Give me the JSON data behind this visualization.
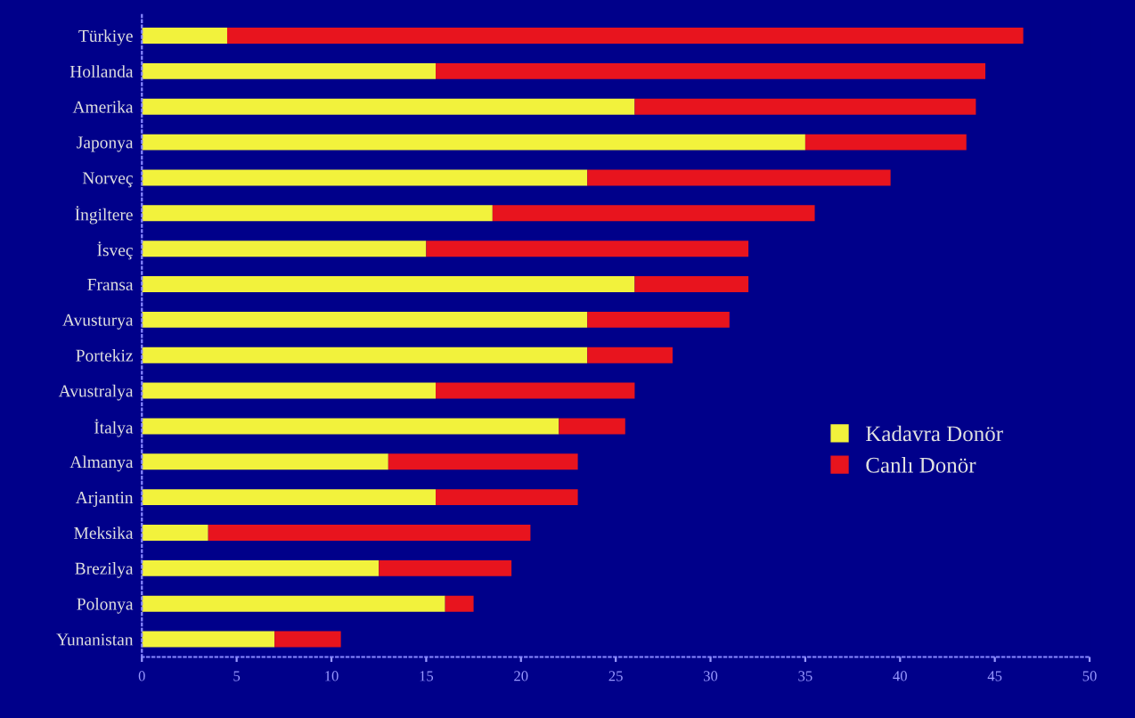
{
  "chart_data": {
    "type": "bar",
    "orientation": "horizontal",
    "stacked": true,
    "categories": [
      "Türkiye",
      "Hollanda",
      "Amerika",
      "Japonya",
      "Norveç",
      "İngiltere",
      "İsveç",
      "Fransa",
      "Avusturya",
      "Portekiz",
      "Avustralya",
      "İtalya",
      "Almanya",
      "Arjantin",
      "Meksika",
      "Brezilya",
      "Polonya",
      "Yunanistan"
    ],
    "series": [
      {
        "name": "Kadavra Donör",
        "color": "#f2f23c",
        "values": [
          4.5,
          15.5,
          26,
          35,
          23.5,
          18.5,
          15,
          26,
          23.5,
          23.5,
          15.5,
          22,
          13,
          15.5,
          3.5,
          12.5,
          16,
          7
        ]
      },
      {
        "name": "Canlı Donör",
        "color": "#e8141e",
        "values": [
          42,
          29,
          18,
          8.5,
          16,
          17,
          17,
          6,
          7.5,
          4.5,
          10.5,
          3.5,
          10,
          7.5,
          17,
          7,
          1.5,
          3.5
        ]
      }
    ],
    "xlim": [
      0,
      50
    ],
    "xticks": [
      0,
      5,
      10,
      15,
      20,
      25,
      30,
      35,
      40,
      45,
      50
    ],
    "grid": false,
    "legend": "right"
  }
}
